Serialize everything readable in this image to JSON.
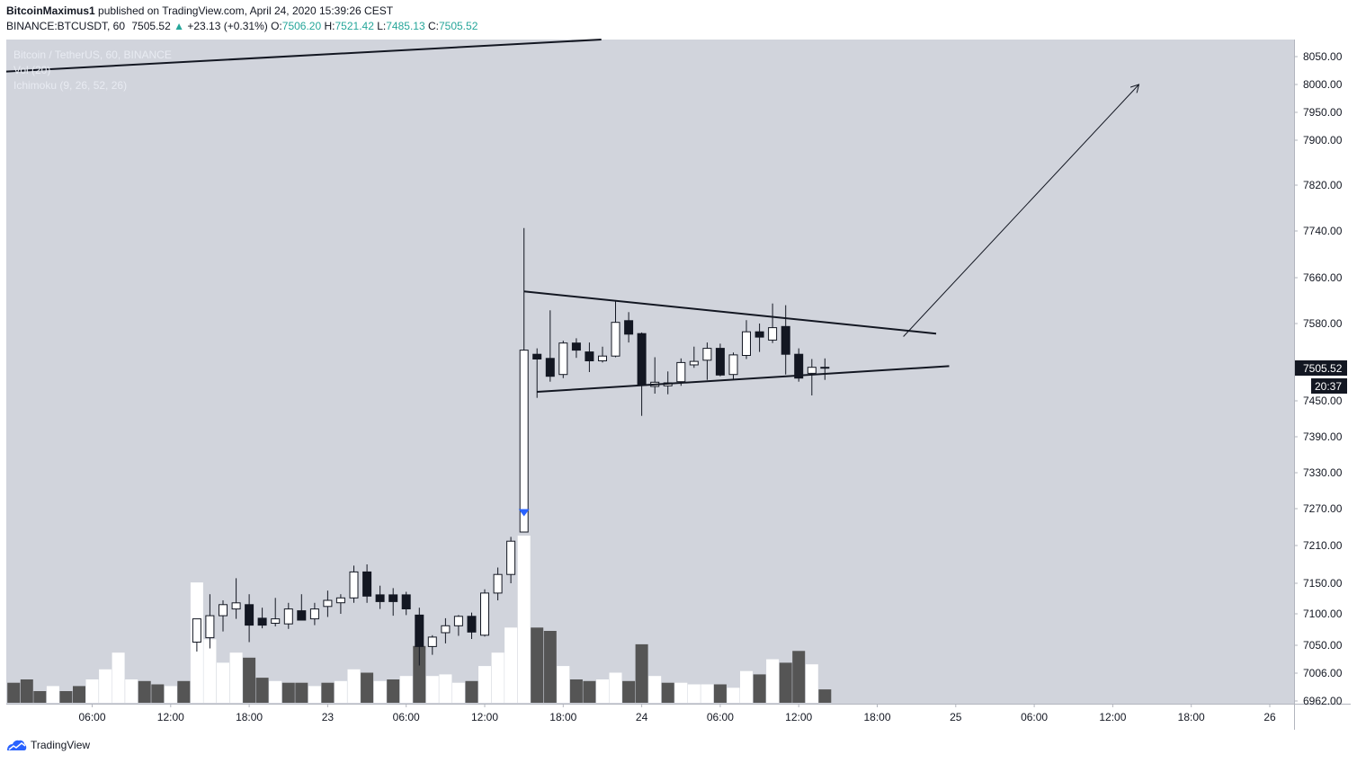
{
  "header": {
    "author": "BitcoinMaximus1",
    "published_text": "published on TradingView.com, April 24, 2020 15:39:26 CEST",
    "symbol": "BINANCE:BTCUSDT, 60",
    "last": "7505.52",
    "change": "+23.13 (+0.31%)",
    "o_label": "O:",
    "o_value": "7506.20",
    "h_label": "H:",
    "h_value": "7521.42",
    "l_label": "L:",
    "l_value": "7485.13",
    "c_label": "C:",
    "c_value": "7505.52"
  },
  "legend": {
    "title": "Bitcoin / TetherUS, 60, BINANCE",
    "vol": "Vol (20)",
    "ichimoku": "Ichimoku (9, 26, 52, 26)"
  },
  "price_tag": {
    "price": "7505.52",
    "countdown": "20:37"
  },
  "footer": {
    "brand": "TradingView"
  },
  "colors": {
    "background": "#d1d4dc",
    "bull": "#ffffff",
    "bear": "#131722",
    "vol_bull": "#ffffff",
    "vol_bear": "#555555",
    "signal": "#2962ff",
    "up_text": "#26a69a"
  },
  "chart_data": {
    "type": "candlestick",
    "interval_minutes": 60,
    "y_axis": {
      "ticks": [
        6962,
        7006,
        7050,
        7100,
        7150,
        7210,
        7270,
        7330,
        7390,
        7450,
        7580,
        7660,
        7740,
        7820,
        7900,
        7950,
        8000,
        8050
      ],
      "tick_labels": [
        "6962.00",
        "7006.00",
        "7050.00",
        "7100.00",
        "7150.00",
        "7210.00",
        "7270.00",
        "7330.00",
        "7390.00",
        "7450.00",
        "7580.00",
        "7660.00",
        "7740.00",
        "7820.00",
        "7900.00",
        "7950.00",
        "8000.00",
        "8050.00"
      ]
    },
    "x_axis": {
      "labels": [
        "06:00",
        "12:00",
        "18:00",
        "23",
        "06:00",
        "12:00",
        "18:00",
        "24",
        "06:00",
        "12:00",
        "18:00",
        "25",
        "06:00",
        "12:00",
        "18:00",
        "26"
      ],
      "label_hours": [
        6,
        12,
        18,
        24,
        30,
        36,
        42,
        48,
        54,
        60,
        66,
        72,
        78,
        84,
        90,
        96
      ]
    },
    "candles": [
      {
        "h": 14,
        "o": 7055,
        "hi": 7092,
        "lo": 7040,
        "c": 7092
      },
      {
        "h": 15,
        "o": 7062,
        "hi": 7132,
        "lo": 7045,
        "c": 7097
      },
      {
        "h": 16,
        "o": 7097,
        "hi": 7122,
        "lo": 7072,
        "c": 7115
      },
      {
        "h": 17,
        "o": 7108,
        "hi": 7158,
        "lo": 7092,
        "c": 7118
      },
      {
        "h": 18,
        "o": 7115,
        "hi": 7132,
        "lo": 7055,
        "c": 7082
      },
      {
        "h": 19,
        "o": 7093,
        "hi": 7110,
        "lo": 7077,
        "c": 7082
      },
      {
        "h": 20,
        "o": 7085,
        "hi": 7126,
        "lo": 7080,
        "c": 7092
      },
      {
        "h": 21,
        "o": 7084,
        "hi": 7118,
        "lo": 7076,
        "c": 7108
      },
      {
        "h": 22,
        "o": 7105,
        "hi": 7132,
        "lo": 7090,
        "c": 7090
      },
      {
        "h": 23,
        "o": 7092,
        "hi": 7118,
        "lo": 7082,
        "c": 7108
      },
      {
        "h": 24,
        "o": 7112,
        "hi": 7138,
        "lo": 7095,
        "c": 7122
      },
      {
        "h": 25,
        "o": 7118,
        "hi": 7132,
        "lo": 7100,
        "c": 7126
      },
      {
        "h": 26,
        "o": 7126,
        "hi": 7178,
        "lo": 7118,
        "c": 7168
      },
      {
        "h": 27,
        "o": 7168,
        "hi": 7180,
        "lo": 7118,
        "c": 7129
      },
      {
        "h": 28,
        "o": 7131,
        "hi": 7146,
        "lo": 7108,
        "c": 7120
      },
      {
        "h": 29,
        "o": 7131,
        "hi": 7142,
        "lo": 7097,
        "c": 7120
      },
      {
        "h": 30,
        "o": 7131,
        "hi": 7136,
        "lo": 7098,
        "c": 7108
      },
      {
        "h": 31,
        "o": 7098,
        "hi": 7110,
        "lo": 7018,
        "c": 7048
      },
      {
        "h": 32,
        "o": 7048,
        "hi": 7066,
        "lo": 7035,
        "c": 7063
      },
      {
        "h": 33,
        "o": 7070,
        "hi": 7093,
        "lo": 7053,
        "c": 7081
      },
      {
        "h": 34,
        "o": 7081,
        "hi": 7098,
        "lo": 7065,
        "c": 7096
      },
      {
        "h": 35,
        "o": 7096,
        "hi": 7102,
        "lo": 7060,
        "c": 7071
      },
      {
        "h": 36,
        "o": 7066,
        "hi": 7140,
        "lo": 7064,
        "c": 7134
      },
      {
        "h": 37,
        "o": 7134,
        "hi": 7175,
        "lo": 7122,
        "c": 7164
      },
      {
        "h": 38,
        "o": 7164,
        "hi": 7224,
        "lo": 7150,
        "c": 7217
      },
      {
        "h": 39,
        "o": 7232,
        "hi": 7745,
        "lo": 7232,
        "c": 7535
      },
      {
        "h": 40,
        "o": 7528,
        "hi": 7538,
        "lo": 7455,
        "c": 7520
      },
      {
        "h": 41,
        "o": 7521,
        "hi": 7603,
        "lo": 7482,
        "c": 7491
      },
      {
        "h": 42,
        "o": 7494,
        "hi": 7551,
        "lo": 7488,
        "c": 7547
      },
      {
        "h": 43,
        "o": 7547,
        "hi": 7555,
        "lo": 7522,
        "c": 7535
      },
      {
        "h": 44,
        "o": 7532,
        "hi": 7548,
        "lo": 7498,
        "c": 7517
      },
      {
        "h": 45,
        "o": 7517,
        "hi": 7541,
        "lo": 7514,
        "c": 7525
      },
      {
        "h": 46,
        "o": 7525,
        "hi": 7620,
        "lo": 7523,
        "c": 7582
      },
      {
        "h": 47,
        "o": 7585,
        "hi": 7600,
        "lo": 7548,
        "c": 7562
      },
      {
        "h": 48,
        "o": 7563,
        "hi": 7565,
        "lo": 7425,
        "c": 7476
      },
      {
        "h": 49,
        "o": 7474,
        "hi": 7523,
        "lo": 7462,
        "c": 7481
      },
      {
        "h": 50,
        "o": 7475,
        "hi": 7499,
        "lo": 7461,
        "c": 7480
      },
      {
        "h": 51,
        "o": 7482,
        "hi": 7521,
        "lo": 7475,
        "c": 7514
      },
      {
        "h": 52,
        "o": 7510,
        "hi": 7541,
        "lo": 7505,
        "c": 7516
      },
      {
        "h": 53,
        "o": 7518,
        "hi": 7548,
        "lo": 7485,
        "c": 7538
      },
      {
        "h": 54,
        "o": 7538,
        "hi": 7546,
        "lo": 7491,
        "c": 7493
      },
      {
        "h": 55,
        "o": 7494,
        "hi": 7531,
        "lo": 7486,
        "c": 7527
      },
      {
        "h": 56,
        "o": 7526,
        "hi": 7586,
        "lo": 7520,
        "c": 7566
      },
      {
        "h": 57,
        "o": 7566,
        "hi": 7580,
        "lo": 7532,
        "c": 7557
      },
      {
        "h": 58,
        "o": 7552,
        "hi": 7615,
        "lo": 7547,
        "c": 7573
      },
      {
        "h": 59,
        "o": 7575,
        "hi": 7612,
        "lo": 7494,
        "c": 7528
      },
      {
        "h": 60,
        "o": 7528,
        "hi": 7538,
        "lo": 7482,
        "c": 7488
      },
      {
        "h": 61,
        "o": 7496,
        "hi": 7520,
        "lo": 7459,
        "c": 7506
      },
      {
        "h": 62,
        "o": 7506,
        "hi": 7521,
        "lo": 7485,
        "c": 7506
      }
    ],
    "volume": [
      {
        "h": 0,
        "v": 0.12,
        "d": 1
      },
      {
        "h": 1,
        "v": 0.14,
        "d": 1
      },
      {
        "h": 2,
        "v": 0.07,
        "d": 1
      },
      {
        "h": 3,
        "v": 0.1,
        "d": 0
      },
      {
        "h": 4,
        "v": 0.07,
        "d": 1
      },
      {
        "h": 5,
        "v": 0.1,
        "d": 1
      },
      {
        "h": 6,
        "v": 0.14,
        "d": 0
      },
      {
        "h": 7,
        "v": 0.2,
        "d": 0
      },
      {
        "h": 8,
        "v": 0.3,
        "d": 0
      },
      {
        "h": 9,
        "v": 0.14,
        "d": 0
      },
      {
        "h": 10,
        "v": 0.13,
        "d": 1
      },
      {
        "h": 11,
        "v": 0.11,
        "d": 1
      },
      {
        "h": 12,
        "v": 0.1,
        "d": 0
      },
      {
        "h": 13,
        "v": 0.13,
        "d": 1
      },
      {
        "h": 14,
        "v": 0.72,
        "d": 0
      },
      {
        "h": 15,
        "v": 0.38,
        "d": 0
      },
      {
        "h": 16,
        "v": 0.24,
        "d": 0
      },
      {
        "h": 17,
        "v": 0.3,
        "d": 0
      },
      {
        "h": 18,
        "v": 0.27,
        "d": 1
      },
      {
        "h": 19,
        "v": 0.15,
        "d": 1
      },
      {
        "h": 20,
        "v": 0.13,
        "d": 0
      },
      {
        "h": 21,
        "v": 0.12,
        "d": 1
      },
      {
        "h": 22,
        "v": 0.12,
        "d": 1
      },
      {
        "h": 23,
        "v": 0.1,
        "d": 0
      },
      {
        "h": 24,
        "v": 0.12,
        "d": 1
      },
      {
        "h": 25,
        "v": 0.13,
        "d": 0
      },
      {
        "h": 26,
        "v": 0.2,
        "d": 0
      },
      {
        "h": 27,
        "v": 0.18,
        "d": 1
      },
      {
        "h": 28,
        "v": 0.13,
        "d": 0
      },
      {
        "h": 29,
        "v": 0.14,
        "d": 1
      },
      {
        "h": 30,
        "v": 0.16,
        "d": 0
      },
      {
        "h": 31,
        "v": 0.34,
        "d": 1
      },
      {
        "h": 32,
        "v": 0.16,
        "d": 0
      },
      {
        "h": 33,
        "v": 0.17,
        "d": 0
      },
      {
        "h": 34,
        "v": 0.12,
        "d": 0
      },
      {
        "h": 35,
        "v": 0.13,
        "d": 1
      },
      {
        "h": 36,
        "v": 0.22,
        "d": 0
      },
      {
        "h": 37,
        "v": 0.3,
        "d": 0
      },
      {
        "h": 38,
        "v": 0.45,
        "d": 0
      },
      {
        "h": 39,
        "v": 1.0,
        "d": 0
      },
      {
        "h": 40,
        "v": 0.45,
        "d": 1
      },
      {
        "h": 41,
        "v": 0.43,
        "d": 1
      },
      {
        "h": 42,
        "v": 0.22,
        "d": 0
      },
      {
        "h": 43,
        "v": 0.14,
        "d": 1
      },
      {
        "h": 44,
        "v": 0.13,
        "d": 1
      },
      {
        "h": 45,
        "v": 0.14,
        "d": 0
      },
      {
        "h": 46,
        "v": 0.18,
        "d": 0
      },
      {
        "h": 47,
        "v": 0.13,
        "d": 1
      },
      {
        "h": 48,
        "v": 0.35,
        "d": 1
      },
      {
        "h": 49,
        "v": 0.16,
        "d": 0
      },
      {
        "h": 50,
        "v": 0.12,
        "d": 1
      },
      {
        "h": 51,
        "v": 0.12,
        "d": 0
      },
      {
        "h": 52,
        "v": 0.11,
        "d": 0
      },
      {
        "h": 53,
        "v": 0.11,
        "d": 0
      },
      {
        "h": 54,
        "v": 0.11,
        "d": 1
      },
      {
        "h": 55,
        "v": 0.09,
        "d": 0
      },
      {
        "h": 56,
        "v": 0.19,
        "d": 0
      },
      {
        "h": 57,
        "v": 0.17,
        "d": 1
      },
      {
        "h": 58,
        "v": 0.26,
        "d": 0
      },
      {
        "h": 59,
        "v": 0.24,
        "d": 1
      },
      {
        "h": 60,
        "v": 0.31,
        "d": 1
      },
      {
        "h": 61,
        "v": 0.23,
        "d": 0
      },
      {
        "h": 62,
        "v": 0.08,
        "d": 1
      }
    ],
    "drawings": [
      {
        "name": "upper-trendline",
        "from": {
          "h": -4.7,
          "p": 8018
        },
        "to": {
          "h": 48.8,
          "p": 8088
        }
      },
      {
        "name": "triangle-upper-line",
        "from": {
          "h": 39.0,
          "p": 7636
        },
        "to": {
          "h": 70.5,
          "p": 7563
        }
      },
      {
        "name": "triangle-lower-line",
        "from": {
          "h": 40.0,
          "p": 7465
        },
        "to": {
          "h": 71.5,
          "p": 7508
        }
      },
      {
        "name": "breakout-arrow",
        "from": {
          "h": 68.0,
          "p": 7558
        },
        "to": {
          "h": 86.0,
          "p": 8000
        }
      }
    ],
    "signal_marker": {
      "h": 39,
      "p": 7262
    }
  }
}
